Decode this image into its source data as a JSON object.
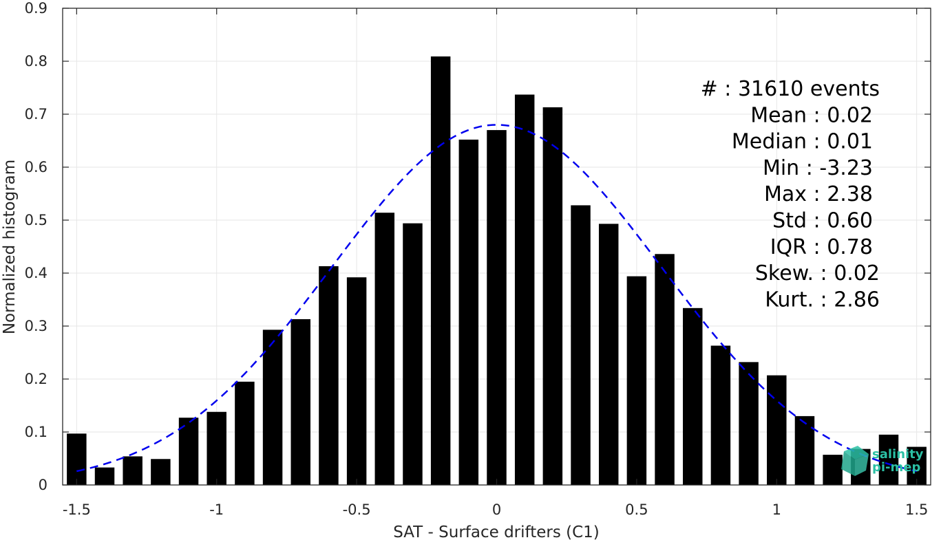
{
  "chart_data": {
    "type": "bar",
    "xlabel": "SAT - Surface drifters (C1)",
    "ylabel": "Normalized histogram",
    "xlim": [
      -1.55,
      1.55
    ],
    "ylim": [
      0,
      0.9
    ],
    "grid": true,
    "bar_color": "#000000",
    "fit_color": "#0000ee",
    "bin_width": 0.1,
    "x": [
      -1.5,
      -1.4,
      -1.3,
      -1.2,
      -1.1,
      -1.0,
      -0.9,
      -0.8,
      -0.7,
      -0.6,
      -0.5,
      -0.4,
      -0.3,
      -0.2,
      -0.1,
      0.0,
      0.1,
      0.2,
      0.3,
      0.4,
      0.5,
      0.6,
      0.7,
      0.8,
      0.9,
      1.0,
      1.1,
      1.2,
      1.3,
      1.4,
      1.5
    ],
    "values": [
      0.097,
      0.033,
      0.054,
      0.049,
      0.127,
      0.138,
      0.195,
      0.293,
      0.313,
      0.413,
      0.392,
      0.514,
      0.494,
      0.809,
      0.652,
      0.67,
      0.737,
      0.713,
      0.528,
      0.493,
      0.394,
      0.436,
      0.334,
      0.263,
      0.232,
      0.207,
      0.13,
      0.057,
      0.068,
      0.095,
      0.072
    ],
    "fit": {
      "type": "gaussian-dashed",
      "mean": 0.0,
      "std": 0.587,
      "peak": 0.68
    },
    "xticks": [
      "-1.5",
      "-1",
      "-0.5",
      "0",
      "0.5",
      "1",
      "1.5"
    ],
    "xtick_values": [
      -1.5,
      -1.0,
      -0.5,
      0.0,
      0.5,
      1.0,
      1.5
    ],
    "yticks": [
      "0",
      "0.1",
      "0.2",
      "0.3",
      "0.4",
      "0.5",
      "0.6",
      "0.7",
      "0.8",
      "0.9"
    ],
    "ytick_values": [
      0,
      0.1,
      0.2,
      0.3,
      0.4,
      0.5,
      0.6,
      0.7,
      0.8,
      0.9
    ],
    "annotations": [
      {
        "label": "#  ",
        "value": ": 31610 events"
      },
      {
        "label": "Mean ",
        "value": ": 0.02"
      },
      {
        "label": "Median ",
        "value": ": 0.01"
      },
      {
        "label": "Min ",
        "value": ": -3.23"
      },
      {
        "label": "Max ",
        "value": ": 2.38"
      },
      {
        "label": "Std ",
        "value": ": 0.60"
      },
      {
        "label": "IQR ",
        "value": ": 0.78"
      },
      {
        "label": "Skew. ",
        "value": ": 0.02"
      },
      {
        "label": "Kurt. ",
        "value": ": 2.86"
      }
    ]
  },
  "logo": {
    "line1": "salinity",
    "line2": "pi-mep",
    "color": "#2bbfa4",
    "icon": "cube-logo-icon"
  }
}
